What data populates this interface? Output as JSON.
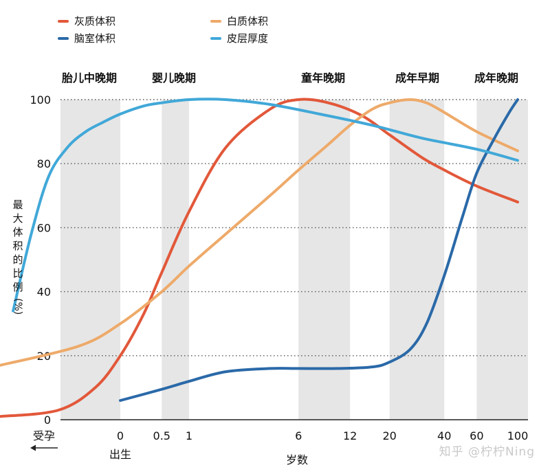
{
  "legend": [
    {
      "label": "灰质体积",
      "color": "#e2583a"
    },
    {
      "label": "白质体积",
      "color": "#eeaa6a"
    },
    {
      "label": "脑室体积",
      "color": "#2a69a8"
    },
    {
      "label": "皮层厚度",
      "color": "#41a8d8"
    }
  ],
  "stages": [
    "胎儿中晚期",
    "婴儿晚期",
    "童年晚期",
    "成年早期",
    "成年晚期"
  ],
  "y_title": "最大体积的比例",
  "y_unit": "(%)",
  "conception_label": "受孕",
  "birth_label": "出生",
  "x_title": "岁数",
  "watermark": "知乎 @柠柠Ning",
  "chart_data": {
    "type": "line",
    "xlabel": "岁数",
    "ylabel": "最大体积的比例 (%)",
    "ylim": [
      0,
      100
    ],
    "y_ticks": [
      0,
      20,
      40,
      60,
      80,
      100
    ],
    "x_scale": "log(age + gestation)",
    "x_ticks": [
      "0",
      "0.5",
      "1",
      "6",
      "12",
      "20",
      "40",
      "60",
      "100"
    ],
    "grid": "horizontal dotted",
    "shaded_periods": [
      "胎儿中晚期",
      "婴儿晚期",
      "童年晚期",
      "成年早期",
      "成年晚期"
    ],
    "series": [
      {
        "name": "灰质体积",
        "color": "#e2583a",
        "x": [
          -0.58,
          -0.4,
          -0.2,
          0,
          0.25,
          0.5,
          1,
          2,
          4,
          6,
          9,
          14,
          20,
          30,
          40,
          60,
          100
        ],
        "y": [
          1,
          3,
          10,
          20,
          33,
          46,
          65,
          85,
          97,
          100,
          99,
          95,
          89,
          82,
          78,
          73,
          68
        ]
      },
      {
        "name": "白质体积",
        "color": "#eeaa6a",
        "x": [
          -0.58,
          -0.3,
          0,
          0.5,
          1,
          2,
          4,
          6,
          9,
          12,
          16,
          20,
          26,
          32,
          40,
          60,
          100
        ],
        "y": [
          17,
          23,
          30,
          40,
          48,
          58,
          70,
          78,
          86,
          92,
          97,
          99,
          100,
          99,
          96,
          90,
          84
        ]
      },
      {
        "name": "脑室体积",
        "color": "#2a69a8",
        "x": [
          0,
          0.5,
          1,
          2,
          4,
          6,
          10,
          16,
          20,
          26,
          32,
          40,
          50,
          60,
          75,
          90,
          100
        ],
        "y": [
          6,
          9.5,
          12,
          15,
          16,
          16,
          16,
          16.5,
          18,
          22,
          30,
          45,
          63,
          77,
          88,
          96,
          100
        ]
      },
      {
        "name": "皮层厚度",
        "color": "#41a8d8",
        "x": [
          -0.55,
          -0.5,
          -0.44,
          -0.36,
          -0.26,
          -0.14,
          0,
          0.25,
          0.5,
          1,
          2,
          4,
          8,
          16,
          30,
          60,
          100
        ],
        "y": [
          34,
          58,
          76,
          85,
          90,
          93,
          95.5,
          98,
          99,
          100,
          100,
          98.5,
          95.5,
          92,
          88,
          84.5,
          81
        ]
      }
    ]
  }
}
